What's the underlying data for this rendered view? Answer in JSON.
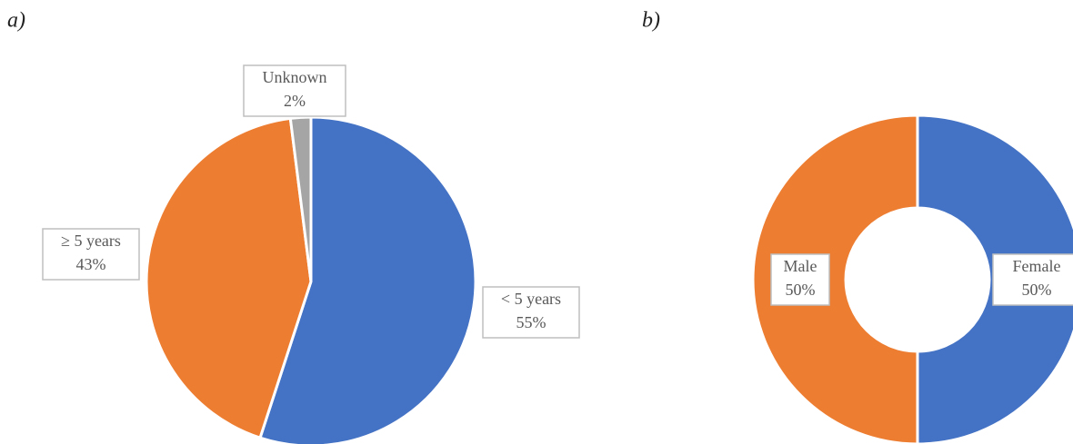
{
  "chart_data": [
    {
      "type": "pie",
      "title": "a)",
      "categories": [
        "< 5 years",
        "≥ 5 years",
        "Unknown"
      ],
      "values": [
        55,
        43,
        2
      ],
      "value_labels": [
        "55%",
        "43%",
        "2%"
      ],
      "colors": [
        "#4472c4",
        "#ed7d31",
        "#a5a5a5"
      ]
    },
    {
      "type": "donut",
      "title": "b)",
      "categories": [
        "Female",
        "Male"
      ],
      "values": [
        50,
        50
      ],
      "value_labels": [
        "50%",
        "50%"
      ],
      "colors": [
        "#4472c4",
        "#ed7d31"
      ]
    }
  ]
}
